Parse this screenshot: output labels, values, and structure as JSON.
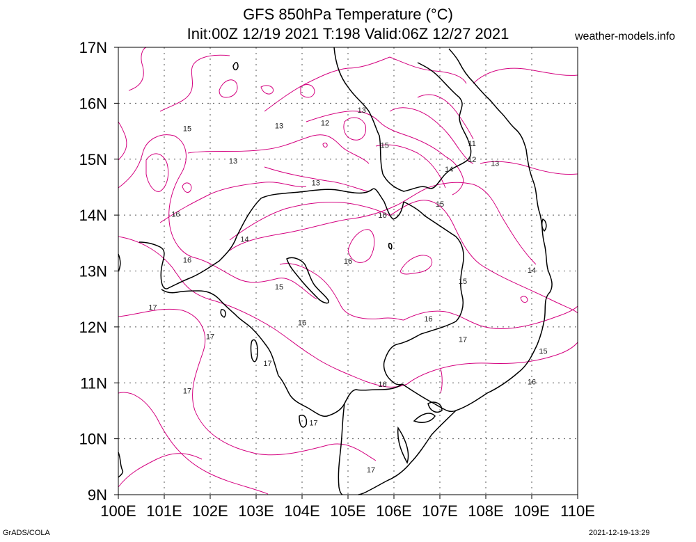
{
  "title": {
    "line1": "GFS 850hPa Temperature (°C)",
    "line2": "Init:00Z 12/19 2021 T:198 Valid:06Z 12/27 2021"
  },
  "site": "weather-models.info",
  "footer": {
    "left": "GrADS/COLA",
    "right": "2021-12-19-13:29"
  },
  "colors": {
    "contour": "#d4007f",
    "coast": "#000000",
    "grid": "#555555"
  },
  "map": {
    "lon_range": [
      100,
      110
    ],
    "lat_range": [
      9,
      17
    ],
    "x_ticks": [
      "100E",
      "101E",
      "102E",
      "103E",
      "104E",
      "105E",
      "106E",
      "107E",
      "108E",
      "109E",
      "110E"
    ],
    "y_ticks": [
      "9N",
      "10N",
      "11N",
      "12N",
      "13N",
      "14N",
      "15N",
      "16N",
      "17N"
    ]
  },
  "contour_labels": [
    {
      "lon": 101.5,
      "lat": 15.55,
      "text": "15"
    },
    {
      "lon": 103.5,
      "lat": 15.6,
      "text": "13"
    },
    {
      "lon": 104.5,
      "lat": 15.65,
      "text": "12"
    },
    {
      "lon": 105.3,
      "lat": 15.88,
      "text": "13"
    },
    {
      "lon": 102.5,
      "lat": 14.97,
      "text": "13"
    },
    {
      "lon": 105.8,
      "lat": 15.25,
      "text": "15"
    },
    {
      "lon": 107.7,
      "lat": 15.28,
      "text": "11"
    },
    {
      "lon": 107.7,
      "lat": 15.0,
      "text": "12"
    },
    {
      "lon": 108.2,
      "lat": 14.93,
      "text": "13"
    },
    {
      "lon": 107.2,
      "lat": 14.82,
      "text": "14"
    },
    {
      "lon": 104.3,
      "lat": 14.58,
      "text": "13"
    },
    {
      "lon": 107.0,
      "lat": 14.2,
      "text": "15"
    },
    {
      "lon": 101.25,
      "lat": 14.02,
      "text": "16"
    },
    {
      "lon": 105.75,
      "lat": 14.0,
      "text": "16"
    },
    {
      "lon": 102.75,
      "lat": 13.57,
      "text": "14"
    },
    {
      "lon": 101.5,
      "lat": 13.2,
      "text": "16"
    },
    {
      "lon": 105.0,
      "lat": 13.18,
      "text": "16"
    },
    {
      "lon": 109.0,
      "lat": 13.02,
      "text": "14"
    },
    {
      "lon": 103.5,
      "lat": 12.72,
      "text": "15"
    },
    {
      "lon": 107.5,
      "lat": 12.82,
      "text": "15"
    },
    {
      "lon": 100.75,
      "lat": 12.35,
      "text": "17"
    },
    {
      "lon": 104.0,
      "lat": 12.08,
      "text": "16"
    },
    {
      "lon": 106.75,
      "lat": 12.15,
      "text": "16"
    },
    {
      "lon": 102.0,
      "lat": 11.83,
      "text": "17"
    },
    {
      "lon": 107.5,
      "lat": 11.78,
      "text": "17"
    },
    {
      "lon": 109.25,
      "lat": 11.57,
      "text": "15"
    },
    {
      "lon": 103.25,
      "lat": 11.35,
      "text": "17"
    },
    {
      "lon": 101.5,
      "lat": 10.86,
      "text": "17"
    },
    {
      "lon": 105.75,
      "lat": 10.98,
      "text": "16"
    },
    {
      "lon": 109.0,
      "lat": 11.02,
      "text": "16"
    },
    {
      "lon": 104.25,
      "lat": 10.29,
      "text": "17"
    },
    {
      "lon": 105.5,
      "lat": 9.45,
      "text": "17"
    }
  ]
}
